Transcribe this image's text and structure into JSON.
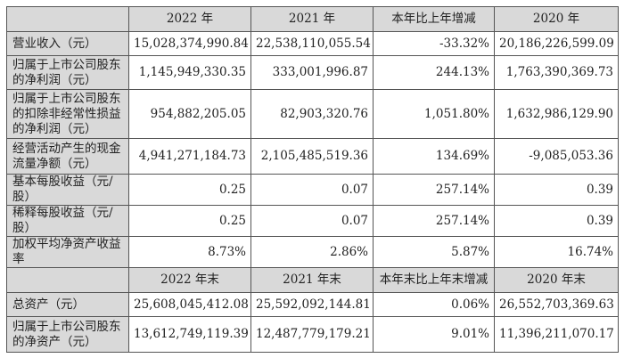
{
  "header1": [
    "",
    "2022 年",
    "2021 年",
    "本年比上年增减",
    "2020 年"
  ],
  "rows1": [
    {
      "label": "营业收入（元）",
      "values": [
        "15,028,374,990.84",
        "22,538,110,055.54",
        "-33.32%",
        "20,186,226,599.09"
      ]
    },
    {
      "label": "归属于上市公司股东的净利润（元）",
      "values": [
        "1,145,949,330.35",
        "333,001,996.87",
        "244.13%",
        "1,763,390,369.73"
      ]
    },
    {
      "label": "归属于上市公司股东的扣除非经常性损益的净利润（元）",
      "values": [
        "954,882,205.05",
        "82,903,320.76",
        "1,051.80%",
        "1,632,986,129.90"
      ]
    },
    {
      "label": "经营活动产生的现金流量净额（元）",
      "values": [
        "4,941,271,184.73",
        "2,105,485,519.36",
        "134.69%",
        "-9,085,053.36"
      ]
    },
    {
      "label": "基本每股收益（元/股）",
      "values": [
        "0.25",
        "0.07",
        "257.14%",
        "0.39"
      ]
    },
    {
      "label": "稀释每股收益（元/股）",
      "values": [
        "0.25",
        "0.07",
        "257.14%",
        "0.39"
      ]
    },
    {
      "label": "加权平均净资产收益率",
      "values": [
        "8.73%",
        "2.86%",
        "5.87%",
        "16.74%"
      ]
    }
  ],
  "header2": [
    "",
    "2022 年末",
    "2021 年末",
    "本年末比上年末增减",
    "2020 年末"
  ],
  "rows2": [
    {
      "label": "总资产（元）",
      "values": [
        "25,608,045,412.08",
        "25,592,092,144.81",
        "0.06%",
        "26,552,703,369.63"
      ]
    },
    {
      "label": "归属于上市公司股东的净资产（元）",
      "values": [
        "13,612,749,119.39",
        "12,487,779,179.21",
        "9.01%",
        "11,396,211,070.17"
      ]
    }
  ]
}
